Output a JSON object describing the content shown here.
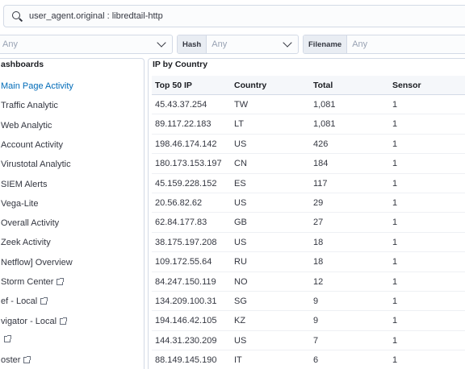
{
  "search": {
    "query": "user_agent.original : libredtail-http"
  },
  "filters": [
    {
      "label": "",
      "value": "Any"
    },
    {
      "label": "Hash",
      "value": "Any"
    },
    {
      "label": "Filename",
      "value": "Any"
    }
  ],
  "left_panel": {
    "title": "ashboards",
    "items": [
      {
        "label": "Main Page Activity",
        "active": true,
        "external": false
      },
      {
        "label": "Traffic Analytic",
        "active": false,
        "external": false
      },
      {
        "label": "Web Analytic",
        "active": false,
        "external": false
      },
      {
        "label": "Account Activity",
        "active": false,
        "external": false
      },
      {
        "label": "Virustotal Analytic",
        "active": false,
        "external": false
      },
      {
        "label": "SIEM Alerts",
        "active": false,
        "external": false
      },
      {
        "label": "Vega-Lite",
        "active": false,
        "external": false
      },
      {
        "label": "Overall Activity",
        "active": false,
        "external": false
      },
      {
        "label": "Zeek Activity",
        "active": false,
        "external": false
      },
      {
        "label": "Netflow] Overview",
        "active": false,
        "external": false
      },
      {
        "label": "Storm Center",
        "active": false,
        "external": true
      },
      {
        "label": "ef - Local",
        "active": false,
        "external": true
      },
      {
        "label": "vigator - Local",
        "active": false,
        "external": true
      },
      {
        "label": "",
        "active": false,
        "external": true
      },
      {
        "label": "oster",
        "active": false,
        "external": true
      }
    ]
  },
  "table_panel": {
    "title": "IP by Country",
    "columns": [
      "Top 50 IP",
      "Country",
      "Total",
      "Sensor"
    ],
    "rows": [
      [
        "45.43.37.254",
        "TW",
        "1,081",
        "1"
      ],
      [
        "89.117.22.183",
        "LT",
        "1,081",
        "1"
      ],
      [
        "198.46.174.142",
        "US",
        "426",
        "1"
      ],
      [
        "180.173.153.197",
        "CN",
        "184",
        "1"
      ],
      [
        "45.159.228.152",
        "ES",
        "117",
        "1"
      ],
      [
        "20.56.82.62",
        "US",
        "29",
        "1"
      ],
      [
        "62.84.177.83",
        "GB",
        "27",
        "1"
      ],
      [
        "38.175.197.208",
        "US",
        "18",
        "1"
      ],
      [
        "109.172.55.64",
        "RU",
        "18",
        "1"
      ],
      [
        "84.247.150.119",
        "NO",
        "12",
        "1"
      ],
      [
        "134.209.100.31",
        "SG",
        "9",
        "1"
      ],
      [
        "194.146.42.105",
        "KZ",
        "9",
        "1"
      ],
      [
        "144.31.230.209",
        "US",
        "7",
        "1"
      ],
      [
        "88.149.145.190",
        "IT",
        "6",
        "1"
      ]
    ]
  },
  "colors": {
    "accent": "#006bb8",
    "border": "#d3dae6",
    "header_bg": "#f5f7fa"
  }
}
